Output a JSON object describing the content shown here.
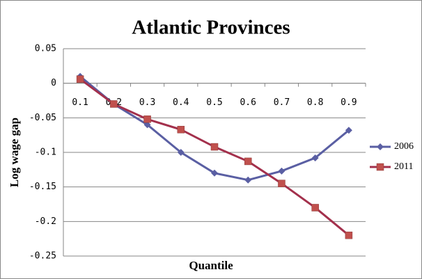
{
  "chart_data": {
    "type": "line",
    "title": "Atlantic Provinces",
    "x_label": "Quantile",
    "y_label": "Log wage gap",
    "categories": [
      "0.1",
      "0.2",
      "0.3",
      "0.4",
      "0.5",
      "0.6",
      "0.7",
      "0.8",
      "0.9"
    ],
    "series": [
      {
        "name": "2006",
        "color": "#5a5fa3",
        "marker": "diamond",
        "values": [
          0.01,
          -0.03,
          -0.06,
          -0.1,
          -0.13,
          -0.14,
          -0.127,
          -0.108,
          -0.068
        ]
      },
      {
        "name": "2011",
        "color": "#a3304c",
        "marker_color": "#c0504d",
        "marker": "square",
        "values": [
          0.006,
          -0.03,
          -0.052,
          -0.067,
          -0.092,
          -0.113,
          -0.145,
          -0.18,
          -0.22
        ]
      }
    ],
    "ylim": [
      -0.25,
      0.05
    ],
    "yticks": [
      -0.25,
      -0.2,
      -0.15,
      -0.1,
      -0.05,
      0,
      0.05
    ],
    "grid": true,
    "legend": "right"
  }
}
